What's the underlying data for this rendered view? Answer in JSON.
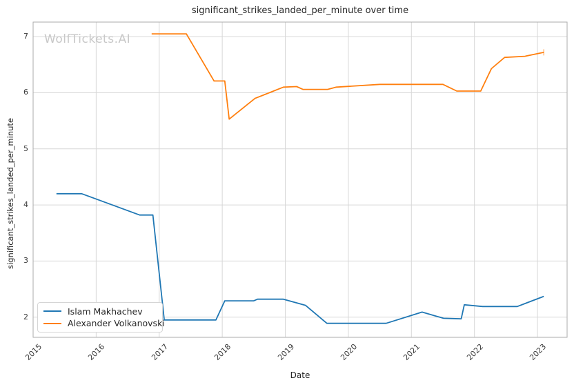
{
  "figure": {
    "watermark": "WolfTickets.AI"
  },
  "chart_data": {
    "type": "line",
    "title": "significant_strikes_landed_per_minute over time",
    "xlabel": "Date",
    "ylabel": "significant_strikes_landed_per_minute",
    "x_ticks": [
      2015,
      2016,
      2017,
      2018,
      2019,
      2020,
      2021,
      2022,
      2023
    ],
    "y_ticks": [
      2,
      3,
      4,
      5,
      6,
      7
    ],
    "xlim": [
      2015.0,
      2023.47
    ],
    "ylim": [
      1.64,
      7.26
    ],
    "grid": true,
    "legend_position": "lower-left",
    "series": [
      {
        "name": "Islam Makhachev",
        "color": "#1f77b4",
        "end_marker": false,
        "points": [
          [
            2015.37,
            4.2
          ],
          [
            2015.77,
            4.2
          ],
          [
            2016.69,
            3.82
          ],
          [
            2016.9,
            3.82
          ],
          [
            2017.08,
            1.95
          ],
          [
            2017.9,
            1.95
          ],
          [
            2018.04,
            2.29
          ],
          [
            2018.5,
            2.29
          ],
          [
            2018.56,
            2.32
          ],
          [
            2018.97,
            2.32
          ],
          [
            2019.32,
            2.21
          ],
          [
            2019.66,
            1.89
          ],
          [
            2020.6,
            1.89
          ],
          [
            2021.17,
            2.09
          ],
          [
            2021.51,
            1.98
          ],
          [
            2021.79,
            1.97
          ],
          [
            2021.84,
            2.22
          ],
          [
            2022.13,
            2.19
          ],
          [
            2022.68,
            2.19
          ],
          [
            2023.1,
            2.37
          ]
        ]
      },
      {
        "name": "Alexander Volkanovski",
        "color": "#ff7f0e",
        "end_marker": true,
        "points": [
          [
            2016.88,
            7.05
          ],
          [
            2017.43,
            7.05
          ],
          [
            2017.87,
            6.21
          ],
          [
            2018.04,
            6.21
          ],
          [
            2018.11,
            5.53
          ],
          [
            2018.52,
            5.9
          ],
          [
            2018.97,
            6.1
          ],
          [
            2019.18,
            6.11
          ],
          [
            2019.28,
            6.06
          ],
          [
            2019.67,
            6.06
          ],
          [
            2019.81,
            6.1
          ],
          [
            2020.5,
            6.15
          ],
          [
            2021.5,
            6.15
          ],
          [
            2021.72,
            6.03
          ],
          [
            2022.1,
            6.03
          ],
          [
            2022.27,
            6.43
          ],
          [
            2022.48,
            6.63
          ],
          [
            2022.8,
            6.65
          ],
          [
            2023.1,
            6.72
          ]
        ]
      }
    ]
  },
  "colors": {
    "background": "#ffffff",
    "grid": "#d7d7d7",
    "spine": "#ababab",
    "text": "#262626",
    "tick_text": "#3a3a3a",
    "watermark": "#c8c8c8"
  }
}
